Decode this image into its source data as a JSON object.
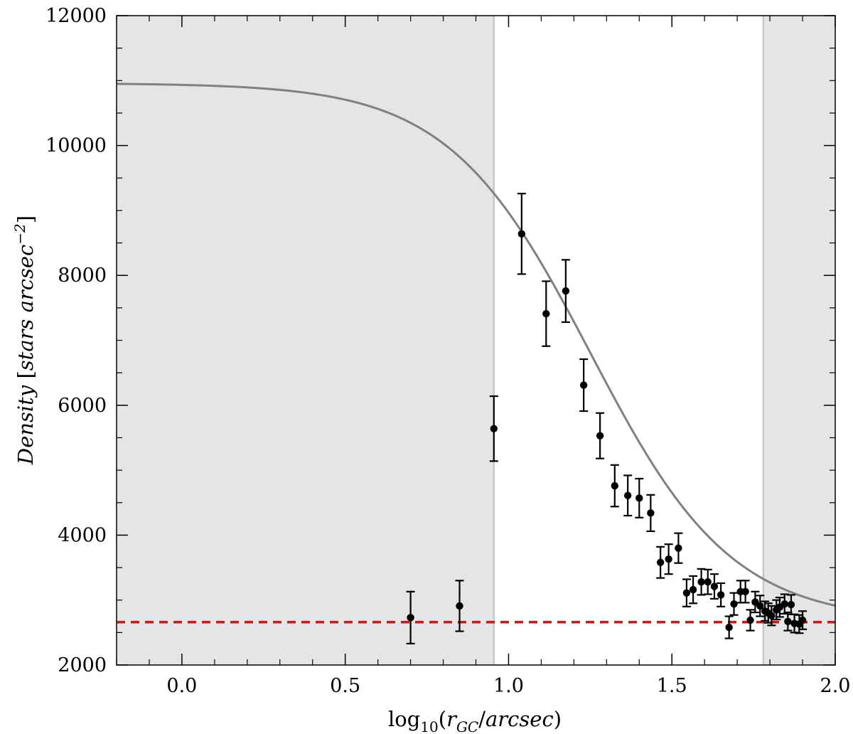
{
  "chart_data": {
    "type": "scatter",
    "title": "",
    "xlabel": "log10(rGC/arcsec)",
    "ylabel": "Density [stars arcsec^-2]",
    "xlim": [
      -0.2,
      2.0
    ],
    "ylim": [
      2000,
      12000
    ],
    "x_ticks": [
      0.0,
      0.5,
      1.0,
      1.5,
      2.0
    ],
    "x_tick_labels": [
      "0.0",
      "0.5",
      "1.0",
      "1.5",
      "2.0"
    ],
    "y_ticks": [
      2000,
      4000,
      6000,
      8000,
      10000,
      12000
    ],
    "y_tick_labels": [
      "2000",
      "4000",
      "6000",
      "8000",
      "10000",
      "12000"
    ],
    "grid": false,
    "legend": "none",
    "shaded_x_ranges": [
      [
        -0.2,
        0.955
      ],
      [
        1.78,
        2.0
      ]
    ],
    "background_level": 2660,
    "fit_model": {
      "type": "king-like profile",
      "central_density": 10960,
      "core_radius_log": 1.25,
      "background": 2660
    },
    "series": [
      {
        "points": [
          {
            "x": 0.7,
            "y": 2730,
            "err": 400
          },
          {
            "x": 0.85,
            "y": 2910,
            "err": 390
          },
          {
            "x": 0.955,
            "y": 5640,
            "err": 500
          },
          {
            "x": 1.04,
            "y": 8640,
            "err": 620
          },
          {
            "x": 1.115,
            "y": 7410,
            "err": 500
          },
          {
            "x": 1.175,
            "y": 7760,
            "err": 480
          },
          {
            "x": 1.23,
            "y": 6310,
            "err": 400
          },
          {
            "x": 1.28,
            "y": 5530,
            "err": 350
          },
          {
            "x": 1.325,
            "y": 4760,
            "err": 320
          },
          {
            "x": 1.365,
            "y": 4610,
            "err": 310
          },
          {
            "x": 1.4,
            "y": 4570,
            "err": 300
          },
          {
            "x": 1.435,
            "y": 4340,
            "err": 280
          },
          {
            "x": 1.465,
            "y": 3580,
            "err": 240
          },
          {
            "x": 1.49,
            "y": 3630,
            "err": 230
          },
          {
            "x": 1.52,
            "y": 3800,
            "err": 230
          },
          {
            "x": 1.545,
            "y": 3110,
            "err": 210
          },
          {
            "x": 1.565,
            "y": 3160,
            "err": 210
          },
          {
            "x": 1.59,
            "y": 3280,
            "err": 200
          },
          {
            "x": 1.61,
            "y": 3280,
            "err": 190
          },
          {
            "x": 1.63,
            "y": 3210,
            "err": 190
          },
          {
            "x": 1.65,
            "y": 3080,
            "err": 180
          },
          {
            "x": 1.675,
            "y": 2580,
            "err": 170
          },
          {
            "x": 1.69,
            "y": 2940,
            "err": 170
          },
          {
            "x": 1.71,
            "y": 3130,
            "err": 170
          },
          {
            "x": 1.725,
            "y": 3130,
            "err": 170
          },
          {
            "x": 1.74,
            "y": 2690,
            "err": 160
          },
          {
            "x": 1.755,
            "y": 2970,
            "err": 160
          },
          {
            "x": 1.77,
            "y": 2910,
            "err": 160
          },
          {
            "x": 1.785,
            "y": 2830,
            "err": 150
          },
          {
            "x": 1.795,
            "y": 2800,
            "err": 150
          },
          {
            "x": 1.805,
            "y": 2760,
            "err": 150
          },
          {
            "x": 1.82,
            "y": 2850,
            "err": 150
          },
          {
            "x": 1.83,
            "y": 2890,
            "err": 150
          },
          {
            "x": 1.845,
            "y": 2940,
            "err": 150
          },
          {
            "x": 1.855,
            "y": 2670,
            "err": 140
          },
          {
            "x": 1.865,
            "y": 2930,
            "err": 150
          },
          {
            "x": 1.875,
            "y": 2640,
            "err": 140
          },
          {
            "x": 1.89,
            "y": 2630,
            "err": 140
          },
          {
            "x": 1.9,
            "y": 2690,
            "err": 140
          }
        ]
      }
    ],
    "colors": {
      "shade": "#e5e5e5",
      "shade_edge": "#c8c8c8",
      "fit_line": "#808080",
      "background_line": "#dd1111",
      "points": "#000000"
    }
  }
}
